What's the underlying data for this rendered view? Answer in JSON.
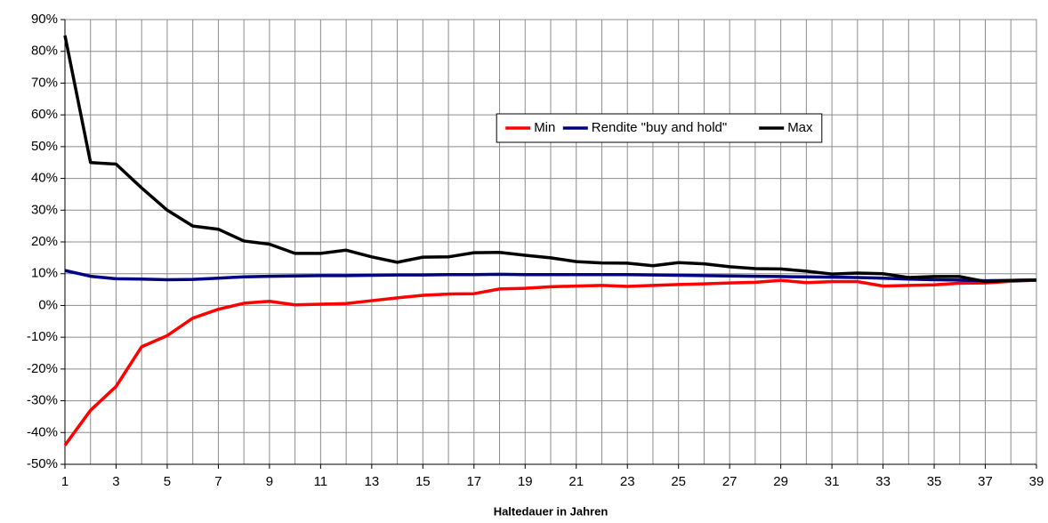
{
  "chart_data": {
    "type": "line",
    "x_label": "Haltedauer in Jahren",
    "x": [
      1,
      2,
      3,
      4,
      5,
      6,
      7,
      8,
      9,
      10,
      11,
      12,
      13,
      14,
      15,
      16,
      17,
      18,
      19,
      20,
      21,
      22,
      23,
      24,
      25,
      26,
      27,
      28,
      29,
      30,
      31,
      32,
      33,
      34,
      35,
      36,
      37,
      38,
      39
    ],
    "xlim": [
      1,
      39
    ],
    "xticks": [
      1,
      3,
      5,
      7,
      9,
      11,
      13,
      15,
      17,
      19,
      21,
      23,
      25,
      27,
      29,
      31,
      33,
      35,
      37,
      39
    ],
    "ylim": [
      -50,
      90
    ],
    "yticks": [
      {
        "value": -50,
        "label": "-50%"
      },
      {
        "value": -40,
        "label": "-40%"
      },
      {
        "value": -30,
        "label": "-30%"
      },
      {
        "value": -20,
        "label": "-20%"
      },
      {
        "value": -10,
        "label": "-10%"
      },
      {
        "value": 0,
        "label": "0%"
      },
      {
        "value": 10,
        "label": "10%"
      },
      {
        "value": 20,
        "label": "20%"
      },
      {
        "value": 30,
        "label": "30%"
      },
      {
        "value": 40,
        "label": "40%"
      },
      {
        "value": 50,
        "label": "50%"
      },
      {
        "value": 60,
        "label": "60%"
      },
      {
        "value": 70,
        "label": "70%"
      },
      {
        "value": 80,
        "label": "80%"
      },
      {
        "value": 90,
        "label": "90%"
      }
    ],
    "grid": true,
    "legend": "upper center",
    "series": [
      {
        "name": "Min",
        "color": "#ff0000",
        "values": [
          -44,
          -33,
          -25.5,
          -13,
          -9.5,
          -4,
          -1.2,
          0.7,
          1.3,
          0.2,
          0.4,
          0.6,
          1.5,
          2.4,
          3.2,
          3.6,
          3.7,
          5.2,
          5.4,
          5.9,
          6.1,
          6.3,
          6.0,
          6.3,
          6.6,
          6.8,
          7.1,
          7.3,
          7.9,
          7.2,
          7.5,
          7.5,
          6.1,
          6.3,
          6.5,
          7.0,
          7.1,
          7.6,
          8.0
        ]
      },
      {
        "name": "Rendite \"buy and hold\"",
        "color": "#000080",
        "values": [
          11,
          9.2,
          8.4,
          8.3,
          8.1,
          8.2,
          8.6,
          9.0,
          9.2,
          9.3,
          9.4,
          9.4,
          9.5,
          9.6,
          9.6,
          9.7,
          9.7,
          9.8,
          9.7,
          9.7,
          9.7,
          9.7,
          9.7,
          9.6,
          9.5,
          9.4,
          9.3,
          9.2,
          9.1,
          9.0,
          8.9,
          8.8,
          8.6,
          8.3,
          8.1,
          8.0,
          7.8,
          7.9,
          8.0
        ]
      },
      {
        "name": "Max",
        "color": "#000000",
        "values": [
          85,
          45,
          44.5,
          37,
          30,
          25,
          24,
          20.3,
          19.3,
          16.4,
          16.4,
          17.4,
          15.3,
          13.6,
          15.2,
          15.3,
          16.6,
          16.7,
          15.8,
          15,
          13.8,
          13.4,
          13.3,
          12.5,
          13.5,
          13.1,
          12.2,
          11.6,
          11.5,
          10.8,
          9.9,
          10.2,
          10,
          8.8,
          9.1,
          9.1,
          7.5,
          7.9,
          8.0
        ]
      }
    ]
  }
}
